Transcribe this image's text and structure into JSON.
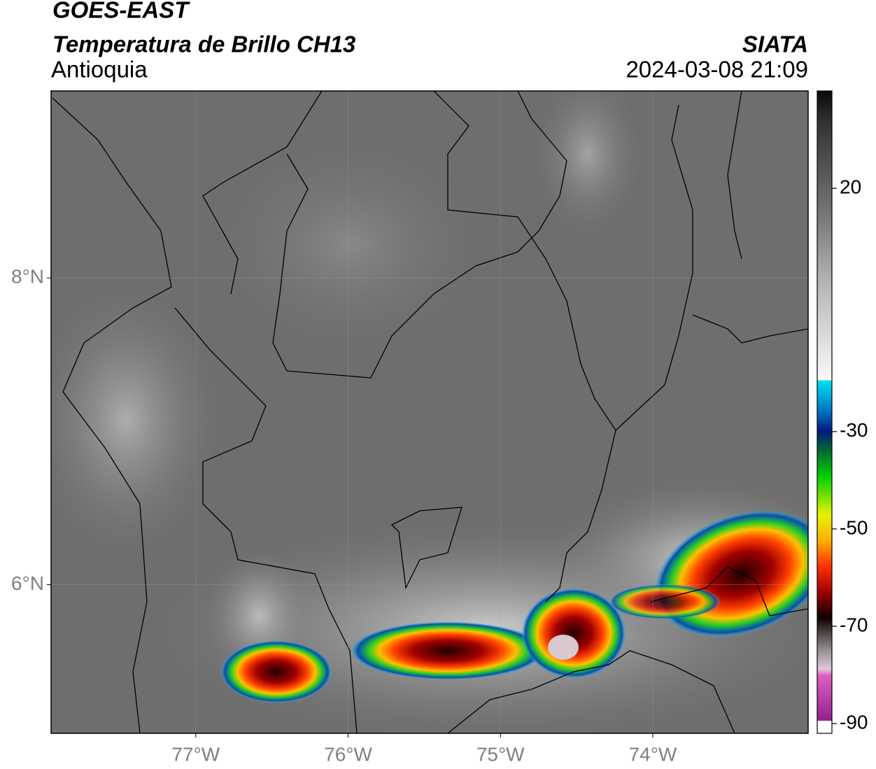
{
  "header": {
    "title": "GOES-EAST",
    "subtitle": "Temperatura de Brillo CH13",
    "region": "Antioquia",
    "source": "SIATA",
    "timestamp": "2024-03-08 21:09"
  },
  "map": {
    "xlim": [
      -77.95,
      -72.98
    ],
    "ylim": [
      5.03,
      9.22
    ],
    "xticks": [
      {
        "value": -77,
        "label": "77°W"
      },
      {
        "value": -76,
        "label": "76°W"
      },
      {
        "value": -75,
        "label": "75°W"
      },
      {
        "value": -74,
        "label": "74°W"
      }
    ],
    "yticks": [
      {
        "value": 8,
        "label": "8°N"
      },
      {
        "value": 6,
        "label": "6°N"
      }
    ]
  },
  "colorbar": {
    "lim": [
      -92,
      40
    ],
    "ticks": [
      20,
      -30,
      -50,
      -70,
      -90
    ]
  }
}
